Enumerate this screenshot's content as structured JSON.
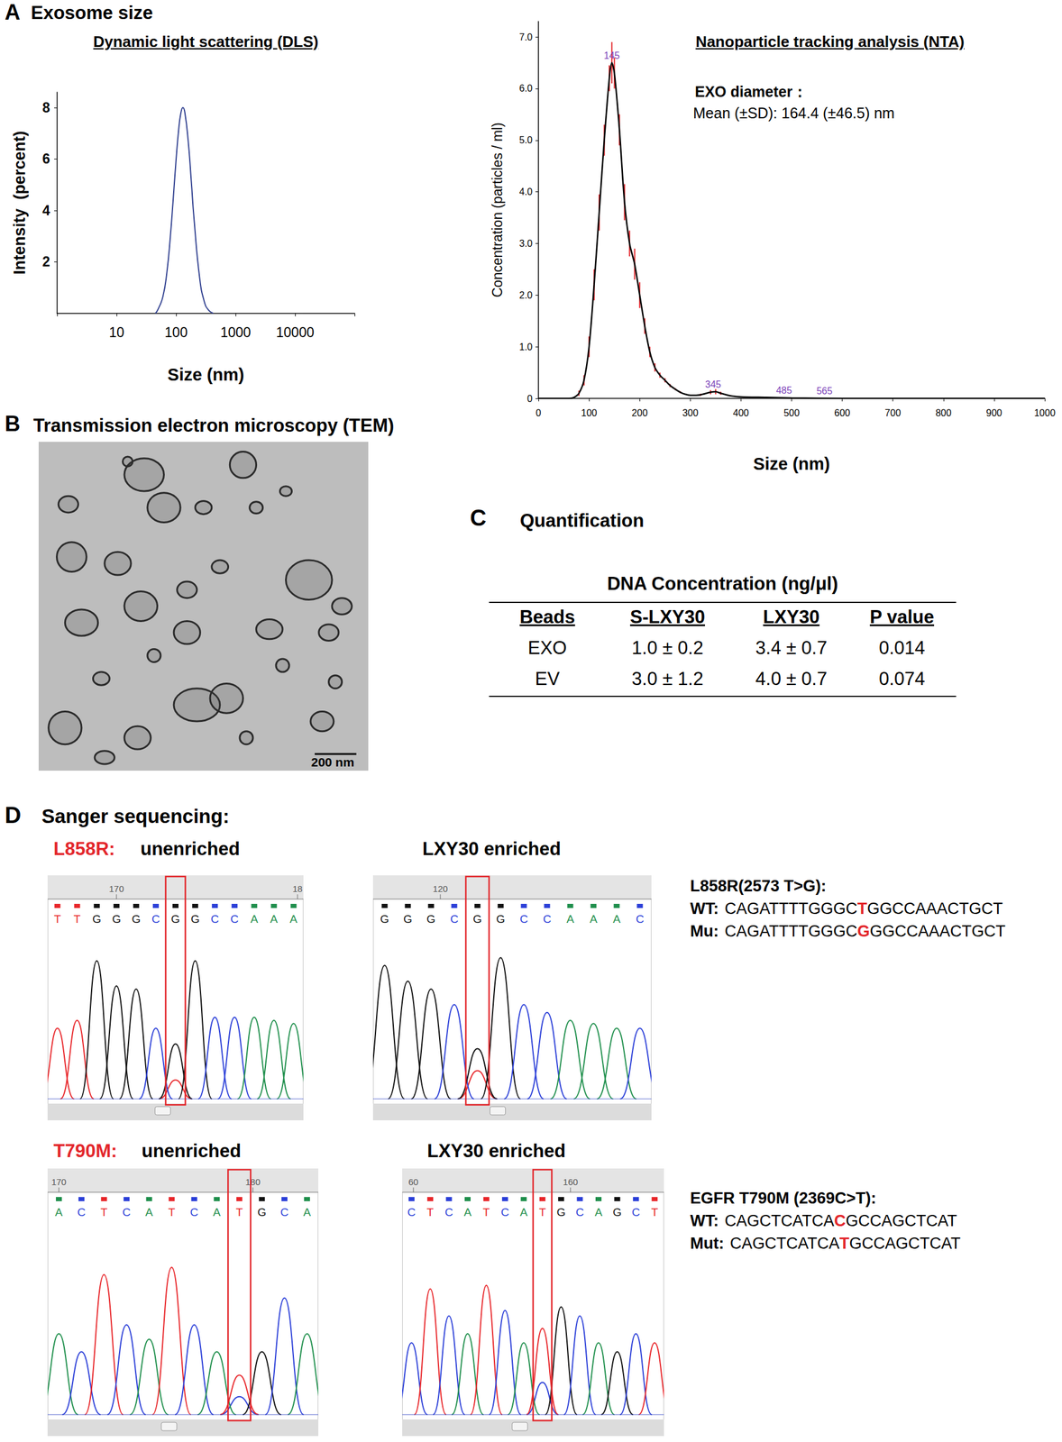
{
  "chart_data": [
    {
      "type": "line",
      "title": "Dynamic light scattering (DLS)",
      "x_label": "Size (nm)",
      "y_label": "Intensity  (percent)",
      "x": [
        45,
        50,
        60,
        70,
        80,
        90,
        100,
        110,
        120,
        130,
        140,
        160,
        180,
        200,
        250,
        300,
        350,
        420
      ],
      "values": [
        0,
        0.17,
        0.65,
        1.6,
        2.98,
        4.53,
        5.99,
        7.1,
        7.78,
        8,
        7.82,
        6.68,
        5.14,
        3.68,
        1.34,
        0.43,
        0.13,
        0
      ],
      "color": "#2f3f8f",
      "log": "x",
      "xlim": [
        1,
        100000
      ],
      "xticks": [
        10,
        100,
        1000,
        10000
      ],
      "ylim": [
        0,
        8.6
      ],
      "yticks": [
        2,
        4,
        6,
        8
      ],
      "grid": false
    },
    {
      "type": "line",
      "title": "Nanoparticle tracking analysis (NTA)",
      "x_label": "Size (nm)",
      "y_label": "Concentration (particles / ml)",
      "subtitle": [
        "EXO diameter：",
        "Mean (±SD): 164.4 (±46.5) nm"
      ],
      "x": [
        0,
        50,
        60,
        70,
        80,
        90,
        100,
        110,
        120,
        130,
        140,
        145,
        150,
        160,
        170,
        180,
        190,
        200,
        210,
        220,
        230,
        240,
        250,
        260,
        270,
        280,
        290,
        300,
        320,
        340,
        350,
        360,
        380,
        400,
        450,
        500,
        600,
        700,
        800,
        900,
        1000
      ],
      "values": [
        0,
        0,
        0,
        0.02,
        0.1,
        0.35,
        1.0,
        2.2,
        3.6,
        5.0,
        6.2,
        6.5,
        6.3,
        5.2,
        3.8,
        3.0,
        2.6,
        2.0,
        1.4,
        0.9,
        0.6,
        0.45,
        0.35,
        0.25,
        0.18,
        0.12,
        0.08,
        0.06,
        0.07,
        0.12,
        0.13,
        0.1,
        0.05,
        0.03,
        0.02,
        0.01,
        0,
        0,
        0,
        0,
        0
      ],
      "error": [
        0,
        0,
        0,
        0,
        0.05,
        0.1,
        0.2,
        0.3,
        0.35,
        0.3,
        0.25,
        0.4,
        0.3,
        0.3,
        0.35,
        0.25,
        0.3,
        0.25,
        0.15,
        0.1,
        0.08,
        0.05,
        0.04,
        0.03,
        0.02,
        0.02,
        0.01,
        0.01,
        0.02,
        0.04,
        0.05,
        0.03,
        0.01,
        0,
        0,
        0,
        0,
        0,
        0,
        0,
        0
      ],
      "annotations": [
        {
          "text": "145",
          "x": 145,
          "y": 6.5
        },
        {
          "text": "345",
          "x": 345,
          "y": 0.13
        },
        {
          "text": "485",
          "x": 485,
          "y": 0.02
        },
        {
          "text": "565",
          "x": 565,
          "y": 0.01
        }
      ],
      "color": "#000000",
      "xlim": [
        0,
        1000
      ],
      "xticks": [
        0,
        100,
        200,
        300,
        400,
        500,
        600,
        700,
        800,
        900,
        1000
      ],
      "ylim": [
        0,
        7.3
      ],
      "yticks": [
        0,
        {
          "value": 1,
          "label": "1.0"
        },
        {
          "value": 2,
          "label": "2.0"
        },
        {
          "value": 3,
          "label": "3.0"
        },
        {
          "value": 4,
          "label": "4.0"
        },
        {
          "value": 5,
          "label": "5.0"
        },
        {
          "value": 6,
          "label": "6.0"
        },
        {
          "value": 7,
          "label": "7.0"
        }
      ],
      "grid": false
    }
  ],
  "panel_a": {
    "label": "A",
    "title": "Exosome size"
  },
  "panel_b": {
    "label": "B",
    "title": "Transmission electron microscopy (TEM)",
    "scale_bar": "200 nm"
  },
  "panel_c": {
    "label": "C",
    "title": "Quantification",
    "table": {
      "title": "DNA Concentration (ng/μl)",
      "columns": [
        "Beads",
        "S-LXY30",
        "LXY30",
        "P value"
      ],
      "rows": [
        [
          "EXO",
          "1.0 ± 0.2",
          "3.4 ± 0.7",
          "0.014"
        ],
        [
          "EV",
          "3.0 ± 1.2",
          "4.0 ± 0.7",
          "0.074"
        ]
      ]
    }
  },
  "panel_d": {
    "label": "D",
    "title": "Sanger sequencing:",
    "rows": [
      {
        "mutation": "L858R:",
        "traces": [
          {
            "title": "unenriched",
            "positions": [
              {
                "label": "170",
                "index": 3
              },
              {
                "label": "18",
                "index": 12.2
              }
            ],
            "bases": [
              "T",
              "T",
              "G",
              "G",
              "G",
              "C",
              "G",
              "G",
              "C",
              "C",
              "A",
              "A",
              "A"
            ],
            "heights": [
              45,
              50,
              88,
              72,
              70,
              45,
              35,
              88,
              52,
              52,
              52,
              50,
              48
            ],
            "box_index": 6,
            "secondary": [
              {
                "index": 6,
                "base": "T",
                "height": 12
              }
            ]
          },
          {
            "title": "LXY30 enriched",
            "positions": [
              {
                "label": "120",
                "index": 2.4
              }
            ],
            "bases": [
              "G",
              "G",
              "G",
              "C",
              "G",
              "G",
              "C",
              "C",
              "A",
              "A",
              "A",
              "C"
            ],
            "heights": [
              85,
              75,
              70,
              60,
              32,
              90,
              60,
              55,
              50,
              48,
              45,
              45
            ],
            "box_index": 4,
            "secondary": [
              {
                "index": 4,
                "base": "T",
                "height": 18
              }
            ]
          }
        ],
        "reference": {
          "title": "L858R(2573 T>G):",
          "lines": [
            {
              "label": "WT:",
              "before": "CAGATTTTGGGC",
              "highlight": "T",
              "after": "GGCCAAACTGCT"
            },
            {
              "label": "Mu:",
              "before": "CAGATTTTGGGC",
              "highlight": "G",
              "after": "GGCCAAACTGCT"
            }
          ]
        }
      },
      {
        "mutation": "T790M:",
        "traces": [
          {
            "title": "unenriched",
            "positions": [
              {
                "label": "170",
                "index": 0
              },
              {
                "label": "180",
                "index": 8.6
              }
            ],
            "bases": [
              "A",
              "C",
              "T",
              "C",
              "A",
              "T",
              "C",
              "A",
              "T",
              "G",
              "C",
              "A"
            ],
            "heights": [
              45,
              35,
              78,
              50,
              42,
              82,
              50,
              35,
              22,
              35,
              65,
              45
            ],
            "box_index": 8,
            "secondary": [
              {
                "index": 8,
                "base": "C",
                "height": 10
              }
            ]
          },
          {
            "title": "LXY30 enriched",
            "positions": [
              {
                "label": "60",
                "index": 0.1
              },
              {
                "label": "160",
                "index": 8.5
              }
            ],
            "bases": [
              "C",
              "T",
              "C",
              "A",
              "T",
              "C",
              "A",
              "T",
              "G",
              "C",
              "A",
              "G",
              "C",
              "T"
            ],
            "heights": [
              40,
              70,
              55,
              45,
              72,
              58,
              40,
              48,
              60,
              55,
              40,
              35,
              45,
              40
            ],
            "box_index": 7,
            "secondary": [
              {
                "index": 7,
                "base": "C",
                "height": 18
              }
            ]
          }
        ],
        "reference": {
          "title": "EGFR T790M (2369C>T):",
          "lines": [
            {
              "label": "WT:",
              "before": "CAGCTCATCA",
              "highlight": "C",
              "after": "GCCAGCTCAT"
            },
            {
              "label": "Mut:",
              "before": "CAGCTCATCA",
              "highlight": "T",
              "after": "GCCAGCTCAT"
            }
          ]
        }
      }
    ]
  }
}
